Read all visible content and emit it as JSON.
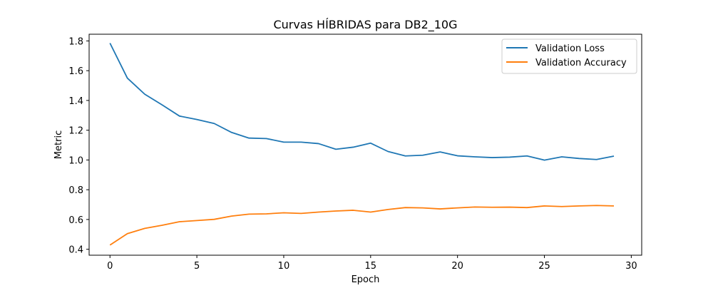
{
  "chart_data": {
    "type": "line",
    "title": "Curvas HÍBRIDAS para DB2_10G",
    "xlabel": "Epoch",
    "ylabel": "Metric",
    "xlim": [
      -1.2,
      30.6
    ],
    "ylim": [
      0.36,
      1.845
    ],
    "xticks": [
      0,
      5,
      10,
      15,
      20,
      25,
      30
    ],
    "xtick_labels": [
      "0",
      "5",
      "10",
      "15",
      "20",
      "25",
      "30"
    ],
    "yticks": [
      0.4,
      0.6,
      0.8,
      1.0,
      1.2,
      1.4,
      1.6,
      1.8
    ],
    "ytick_labels": [
      "0.4",
      "0.6",
      "0.8",
      "1.0",
      "1.2",
      "1.4",
      "1.6",
      "1.8"
    ],
    "grid": false,
    "legend_position": "top-right",
    "x": [
      0,
      1,
      2,
      3,
      4,
      5,
      6,
      7,
      8,
      9,
      10,
      11,
      12,
      13,
      14,
      15,
      16,
      17,
      18,
      19,
      20,
      21,
      22,
      23,
      24,
      25,
      26,
      27,
      28,
      29
    ],
    "series": [
      {
        "name": "Validation Loss",
        "color": "#1f77b4",
        "values": [
          1.785,
          1.55,
          1.442,
          1.37,
          1.295,
          1.272,
          1.245,
          1.185,
          1.147,
          1.144,
          1.12,
          1.12,
          1.11,
          1.072,
          1.086,
          1.113,
          1.057,
          1.027,
          1.032,
          1.054,
          1.028,
          1.021,
          1.016,
          1.019,
          1.027,
          0.999,
          1.021,
          1.01,
          1.003,
          1.026
        ]
      },
      {
        "name": "Validation Accuracy",
        "color": "#ff7f0e",
        "values": [
          0.428,
          0.505,
          0.54,
          0.561,
          0.585,
          0.593,
          0.601,
          0.623,
          0.636,
          0.638,
          0.645,
          0.641,
          0.65,
          0.657,
          0.662,
          0.65,
          0.667,
          0.68,
          0.678,
          0.671,
          0.678,
          0.684,
          0.682,
          0.683,
          0.68,
          0.691,
          0.687,
          0.691,
          0.694,
          0.691
        ]
      }
    ]
  }
}
